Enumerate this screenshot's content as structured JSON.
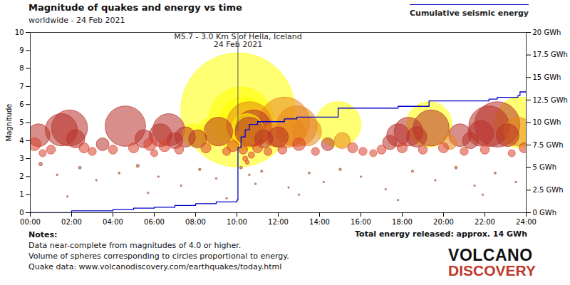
{
  "chart_data": {
    "type": "scatter",
    "title": "Magnitude of quakes and energy vs time",
    "subtitle": "worldwide - 24 Feb 2021",
    "ylabel": "Magnitude",
    "xlim": [
      0,
      24
    ],
    "xticks": [
      {
        "value": 0,
        "label": "00:00"
      },
      {
        "value": 2,
        "label": "02:00"
      },
      {
        "value": 4,
        "label": "04:00"
      },
      {
        "value": 6,
        "label": "06:00"
      },
      {
        "value": 8,
        "label": "08:00"
      },
      {
        "value": 10,
        "label": "10:00"
      },
      {
        "value": 12,
        "label": "12:00"
      },
      {
        "value": 14,
        "label": "14:00"
      },
      {
        "value": 16,
        "label": "16:00"
      },
      {
        "value": 18,
        "label": "18:00"
      },
      {
        "value": 20,
        "label": "20:00"
      },
      {
        "value": 22,
        "label": "22:00"
      },
      {
        "value": 24,
        "label": "24:00"
      }
    ],
    "ylim": [
      0,
      10
    ],
    "yticks": [
      0,
      1,
      2,
      3,
      4,
      5,
      6,
      7,
      8,
      9,
      10
    ],
    "y2lim": [
      0,
      20
    ],
    "y2ticks": [
      {
        "value": 0,
        "label": "0 GWh"
      },
      {
        "value": 2.5,
        "label": "2.5 GWh"
      },
      {
        "value": 5,
        "label": "5 GWh"
      },
      {
        "value": 7.5,
        "label": "7.5 GWh"
      },
      {
        "value": 10,
        "label": "10 GWh"
      },
      {
        "value": 12.5,
        "label": "12.5 GWh"
      },
      {
        "value": 15,
        "label": "15 GWh"
      },
      {
        "value": 17.5,
        "label": "17.5 GWh"
      },
      {
        "value": 20,
        "label": "20 GWh"
      }
    ],
    "grid": false,
    "legend": "top-right",
    "annotation": [
      "M5.7 - 3.0 Km S of Hella, Iceland",
      "24 Feb 2021"
    ],
    "series": [
      {
        "type": "scatter",
        "x": [
          10.05,
          10.2,
          10.35,
          10.5,
          14.9,
          19.3,
          23.7,
          7.9,
          8.8,
          0.4,
          1.5,
          1.9,
          2.2,
          3.5,
          4.6,
          5.5,
          6.3,
          6.7,
          7.0,
          7.5,
          8.1,
          9.1,
          10.6,
          10.8,
          11.3,
          12.0,
          12.6,
          12.9,
          13.4,
          14.4,
          15.1,
          17.4,
          17.8,
          18.3,
          18.7,
          19.4,
          20.3,
          20.8,
          21.3,
          21.8,
          22.2,
          22.6,
          23.1,
          23.6,
          10.6,
          11.8,
          12.3,
          0.2,
          0.6,
          1.0,
          2.6,
          3.0,
          4.0,
          5.0,
          5.8,
          6.0,
          6.5,
          7.2,
          8.5,
          9.5,
          9.8,
          10.3,
          10.4,
          10.5,
          10.7,
          11.0,
          11.5,
          12.2,
          13.0,
          13.8,
          15.6,
          16.1,
          16.6,
          17.0,
          18.0,
          19.0,
          20.0,
          21.0,
          22.0,
          23.3,
          23.9,
          0.5,
          1.3,
          2.4,
          3.2,
          4.3,
          5.2,
          6.2,
          7.3,
          8.2,
          9.0,
          10.2,
          10.6,
          10.9,
          11.2,
          12.5,
          13.5,
          14.2,
          15.0,
          16.0,
          17.2,
          18.5,
          19.6,
          20.6,
          21.5,
          22.5,
          23.5,
          1.8,
          5.7,
          9.5,
          13.0,
          17.8,
          21.9
        ],
        "values": [
          5.7,
          5.2,
          5.0,
          4.6,
          4.9,
          4.9,
          5.0,
          4.3,
          4.5,
          4.3,
          4.6,
          4.7,
          4.1,
          3.8,
          4.8,
          4.1,
          4.3,
          4.6,
          4.0,
          4.2,
          4.1,
          4.5,
          4.5,
          4.7,
          4.1,
          4.2,
          4.5,
          4.8,
          4.5,
          3.8,
          4.0,
          3.9,
          4.3,
          4.5,
          4.2,
          4.7,
          3.9,
          4.3,
          4.0,
          4.4,
          4.8,
          4.9,
          4.3,
          4.5,
          4.9,
          4.3,
          5.0,
          3.8,
          3.3,
          3.5,
          3.6,
          3.4,
          3.5,
          3.6,
          3.8,
          3.3,
          3.7,
          3.5,
          3.6,
          3.4,
          3.7,
          3.5,
          3.0,
          2.8,
          3.2,
          3.6,
          3.4,
          3.5,
          3.8,
          3.4,
          3.6,
          3.4,
          3.3,
          3.5,
          3.6,
          3.5,
          3.6,
          3.4,
          3.5,
          3.3,
          3.6,
          2.7,
          2.1,
          2.5,
          1.8,
          2.2,
          2.6,
          2.0,
          1.5,
          2.4,
          1.9,
          2.5,
          2.1,
          1.6,
          2.3,
          1.4,
          2.2,
          1.7,
          2.4,
          2.0,
          1.3,
          2.3,
          1.8,
          2.5,
          1.5,
          2.2,
          1.7,
          0.9,
          1.1,
          0.8,
          1.0,
          0.7,
          1.0
        ],
        "colors": [
          "#ffff00",
          "#ffff00",
          "#ffff00",
          "#ffff00",
          "#ffff00",
          "#ffff00",
          "#ffff00",
          "#ffff00",
          "#ffff00",
          "#b8322a",
          "#b8322a",
          "#b8322a",
          "#b8322a",
          "#b8322a",
          "#b8322a",
          "#b8322a",
          "#b8322a",
          "#b8322a",
          "#b8322a",
          "#b8322a",
          "#b8322a",
          "#b8322a",
          "#b8322a",
          "#b8322a",
          "#b8322a",
          "#b8322a",
          "#e8861a",
          "#e8861a",
          "#e8861a",
          "#b8322a",
          "#e8861a",
          "#b8322a",
          "#b8322a",
          "#b8322a",
          "#b8322a",
          "#b8322a",
          "#e8861a",
          "#b8322a",
          "#b8322a",
          "#b8322a",
          "#b8322a",
          "#b8322a",
          "#b8322a",
          "#e8861a",
          "#e8861a",
          "#e8861a",
          "#e8861a",
          "#d9442e",
          "#d9442e",
          "#d9442e",
          "#d9442e",
          "#d9442e",
          "#d9442e",
          "#d9442e",
          "#d9442e",
          "#d9442e",
          "#d9442e",
          "#d9442e",
          "#d9442e",
          "#d9442e",
          "#d9442e",
          "#d9442e",
          "#d9442e",
          "#d9442e",
          "#d9442e",
          "#d9442e",
          "#d9442e",
          "#d9442e",
          "#d9442e",
          "#d9442e",
          "#d9442e",
          "#d9442e",
          "#d9442e",
          "#d9442e",
          "#d9442e",
          "#d9442e",
          "#d9442e",
          "#d9442e",
          "#d9442e",
          "#d9442e",
          "#d9442e",
          "#a0522d",
          "#a0522d",
          "#a0522d",
          "#a0522d",
          "#a0522d",
          "#a0522d",
          "#a0522d",
          "#a0522d",
          "#a0522d",
          "#a0522d",
          "#a0522d",
          "#a0522d",
          "#a0522d",
          "#a0522d",
          "#a0522d",
          "#a0522d",
          "#a0522d",
          "#a0522d",
          "#a0522d",
          "#a0522d",
          "#a0522d",
          "#a0522d",
          "#a0522d",
          "#a0522d",
          "#a0522d",
          "#a0522d",
          "#a0522d",
          "#a0522d",
          "#a0522d",
          "#a0522d",
          "#a0522d",
          "#a0522d"
        ]
      },
      {
        "name": "Cumulative seismic energy",
        "type": "line",
        "axis": "y2",
        "color": "#0000cc",
        "x": [
          0,
          2,
          4,
          5,
          6,
          7,
          8,
          9,
          10,
          10.05,
          10.2,
          10.4,
          10.6,
          11,
          12.3,
          12.9,
          14.9,
          17.8,
          19.3,
          22.2,
          22.6,
          23.6,
          23.7,
          24
        ],
        "values": [
          0,
          0.2,
          0.35,
          0.5,
          0.6,
          0.8,
          1.0,
          1.2,
          1.4,
          7.2,
          8.4,
          9.2,
          9.8,
          10.1,
          10.4,
          10.6,
          11.6,
          11.8,
          12.4,
          12.6,
          12.8,
          13.0,
          13.4,
          13.5
        ]
      }
    ],
    "notes": {
      "heading": "Notes:",
      "lines": [
        "Data near-complete from magnitudes of 4.0 or higher.",
        "Volume of spheres corresponding to circles proportional to energy.",
        "Quake data: www.volcanodiscovery.com/earthquakes/today.html"
      ]
    },
    "total": "Total energy released: approx. 14 GWh",
    "logo": [
      "VOLCANO",
      "DISCOVERY"
    ]
  }
}
